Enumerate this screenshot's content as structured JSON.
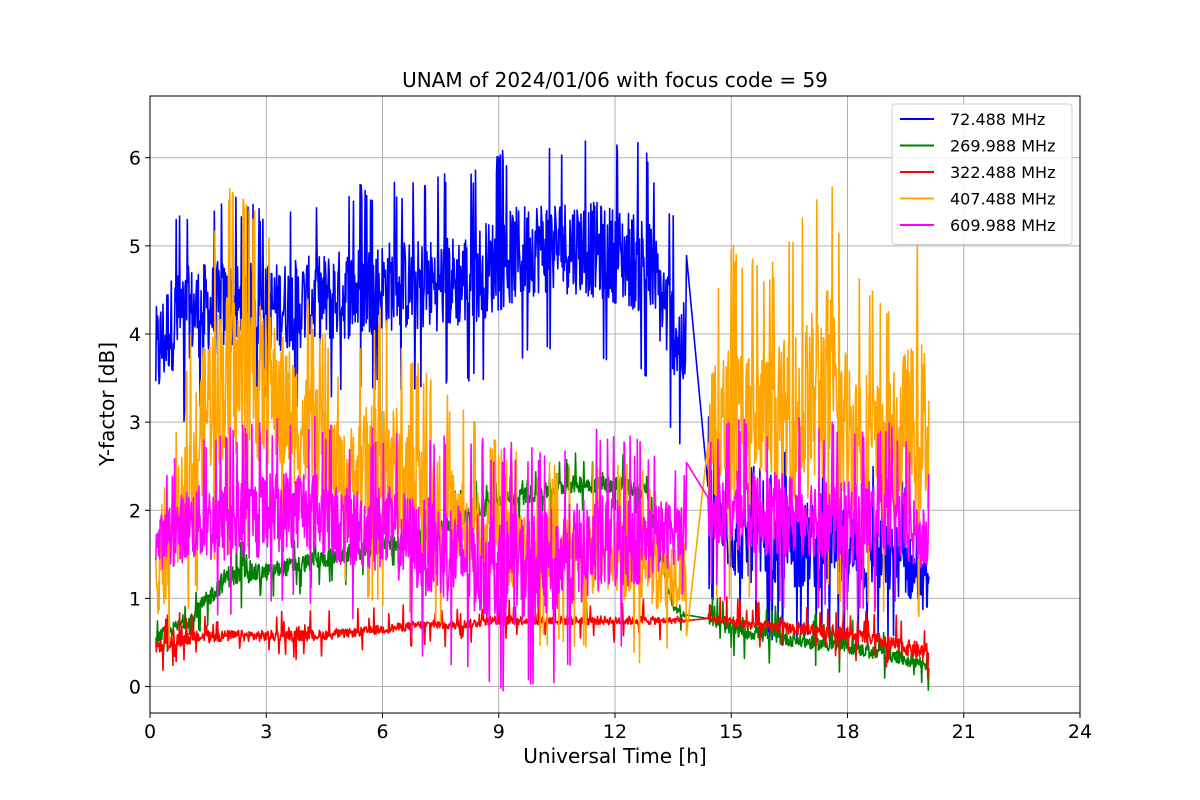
{
  "chart_data": {
    "type": "line",
    "title": "UNAM of 2024/01/06 with focus code = 59",
    "xlabel": "Universal Time [h]",
    "ylabel": "Y-factor [dB]",
    "xlim": [
      0,
      24
    ],
    "ylim": [
      -0.3,
      6.7
    ],
    "xticks": [
      0,
      3,
      6,
      9,
      12,
      15,
      18,
      21,
      24
    ],
    "xtick_labels": [
      "0",
      "3",
      "6",
      "9",
      "12",
      "15",
      "18",
      "21",
      "24"
    ],
    "yticks": [
      0,
      1,
      2,
      3,
      4,
      5,
      6
    ],
    "ytick_labels": [
      "0",
      "1",
      "2",
      "3",
      "4",
      "5",
      "6"
    ],
    "grid": true,
    "legend_position": "top-right",
    "data_gap": [
      13.85,
      14.4
    ],
    "series": [
      {
        "name": " 72.488 MHz",
        "color": "#0000ff",
        "envelope": {
          "x": [
            0.15,
            0.5,
            1,
            2,
            3,
            4,
            5,
            6,
            7,
            8,
            9,
            10,
            11,
            12,
            12.8,
            13.5,
            13.85,
            14.4,
            15,
            15.8,
            16.2,
            16.6,
            17,
            17.5,
            18,
            18.5,
            19,
            19.5,
            20.1
          ],
          "upper": [
            4.9,
            5.2,
            5.3,
            5.4,
            5.3,
            5.4,
            5.5,
            5.6,
            5.6,
            5.7,
            5.9,
            6.1,
            6.1,
            6.0,
            6.0,
            5.2,
            4.8,
            3.1,
            2.6,
            2.4,
            2.5,
            2.6,
            2.6,
            2.5,
            2.5,
            2.4,
            2.3,
            2.2,
            1.5
          ],
          "lower": [
            2.5,
            3.0,
            3.2,
            3.2,
            3.3,
            3.3,
            3.4,
            3.5,
            3.5,
            3.5,
            3.7,
            3.9,
            3.9,
            3.8,
            3.6,
            3.0,
            2.7,
            1.2,
            0.8,
            0.7,
            0.6,
            0.6,
            0.6,
            0.6,
            0.6,
            0.6,
            0.6,
            0.6,
            0.6
          ]
        }
      },
      {
        "name": "269.988 MHz",
        "color": "#008000",
        "envelope": {
          "x": [
            0.15,
            1,
            2,
            3,
            4,
            5,
            6,
            7,
            8,
            9,
            10,
            11,
            12,
            12.8,
            13.5,
            13.85,
            14.4,
            15,
            16,
            17,
            18,
            19,
            20.1
          ],
          "upper": [
            0.7,
            0.9,
            1.5,
            1.5,
            1.6,
            1.7,
            1.8,
            1.9,
            2.1,
            2.3,
            2.4,
            2.5,
            2.5,
            2.4,
            1.0,
            0.85,
            0.9,
            0.8,
            0.75,
            0.65,
            0.6,
            0.5,
            0.4
          ],
          "lower": [
            0.4,
            0.6,
            1.0,
            1.1,
            1.2,
            1.3,
            1.4,
            1.5,
            1.7,
            1.9,
            2.0,
            2.1,
            2.1,
            2.0,
            0.8,
            0.75,
            0.65,
            0.5,
            0.4,
            0.35,
            0.3,
            0.2,
            0.1
          ]
        }
      },
      {
        "name": "322.488 MHz",
        "color": "#ff0000",
        "envelope": {
          "x": [
            0.15,
            1,
            2,
            3,
            4,
            5,
            6,
            7,
            8,
            9,
            10,
            11,
            12,
            12.8,
            13.85,
            14.4,
            15,
            16,
            17,
            18,
            19,
            20.1
          ],
          "upper": [
            0.6,
            0.7,
            0.7,
            0.7,
            0.7,
            0.7,
            0.75,
            0.8,
            0.8,
            0.85,
            0.85,
            0.85,
            0.85,
            0.85,
            0.8,
            0.85,
            0.85,
            0.8,
            0.8,
            0.75,
            0.65,
            0.6
          ],
          "lower": [
            0.3,
            0.4,
            0.45,
            0.45,
            0.45,
            0.5,
            0.55,
            0.6,
            0.6,
            0.65,
            0.65,
            0.65,
            0.65,
            0.65,
            0.7,
            0.7,
            0.6,
            0.55,
            0.5,
            0.45,
            0.35,
            0.15
          ]
        }
      },
      {
        "name": "407.488 MHz",
        "color": "#ffa500",
        "envelope": {
          "x": [
            0.15,
            0.5,
            1,
            1.5,
            2,
            3,
            4,
            5,
            6,
            7,
            8,
            9,
            10,
            11,
            12,
            12.8,
            13.5,
            13.85,
            14.4,
            15,
            16,
            17,
            17.5,
            18,
            19,
            19.5,
            20.1
          ],
          "upper": [
            1.5,
            2.5,
            3.7,
            5.0,
            5.5,
            5.2,
            4.3,
            3.4,
            4.2,
            3.5,
            3.0,
            2.6,
            2.4,
            2.4,
            2.4,
            2.3,
            2.1,
            2.0,
            4.3,
            4.9,
            4.6,
            5.3,
            5.7,
            4.8,
            4.2,
            4.8,
            5.0
          ],
          "lower": [
            0.4,
            0.6,
            1.0,
            1.5,
            1.6,
            1.6,
            1.5,
            1.3,
            1.0,
            0.8,
            0.7,
            0.7,
            0.6,
            0.6,
            0.5,
            0.4,
            0.5,
            0.6,
            1.2,
            1.0,
            1.3,
            1.0,
            1.2,
            1.0,
            1.0,
            1.0,
            0.9
          ]
        }
      },
      {
        "name": "609.988 MHz",
        "color": "#ff00ff",
        "envelope": {
          "x": [
            0.15,
            1,
            2,
            3,
            4,
            5,
            6,
            7,
            8,
            9,
            10,
            11,
            12,
            12.8,
            13.5,
            13.85,
            14.4,
            15,
            16,
            17,
            18,
            19,
            20.1
          ],
          "upper": [
            2.2,
            2.7,
            2.8,
            2.9,
            3.0,
            2.7,
            2.8,
            2.7,
            2.7,
            2.6,
            2.6,
            2.7,
            2.8,
            2.6,
            2.5,
            2.4,
            2.6,
            2.9,
            2.9,
            2.9,
            2.8,
            2.9,
            2.3
          ],
          "lower": [
            1.0,
            1.0,
            0.9,
            1.0,
            1.1,
            0.9,
            0.8,
            0.5,
            0.3,
            0.05,
            0.1,
            0.3,
            0.5,
            0.7,
            1.0,
            1.2,
            1.2,
            1.1,
            1.0,
            1.0,
            0.9,
            1.0,
            0.9
          ]
        }
      }
    ]
  }
}
